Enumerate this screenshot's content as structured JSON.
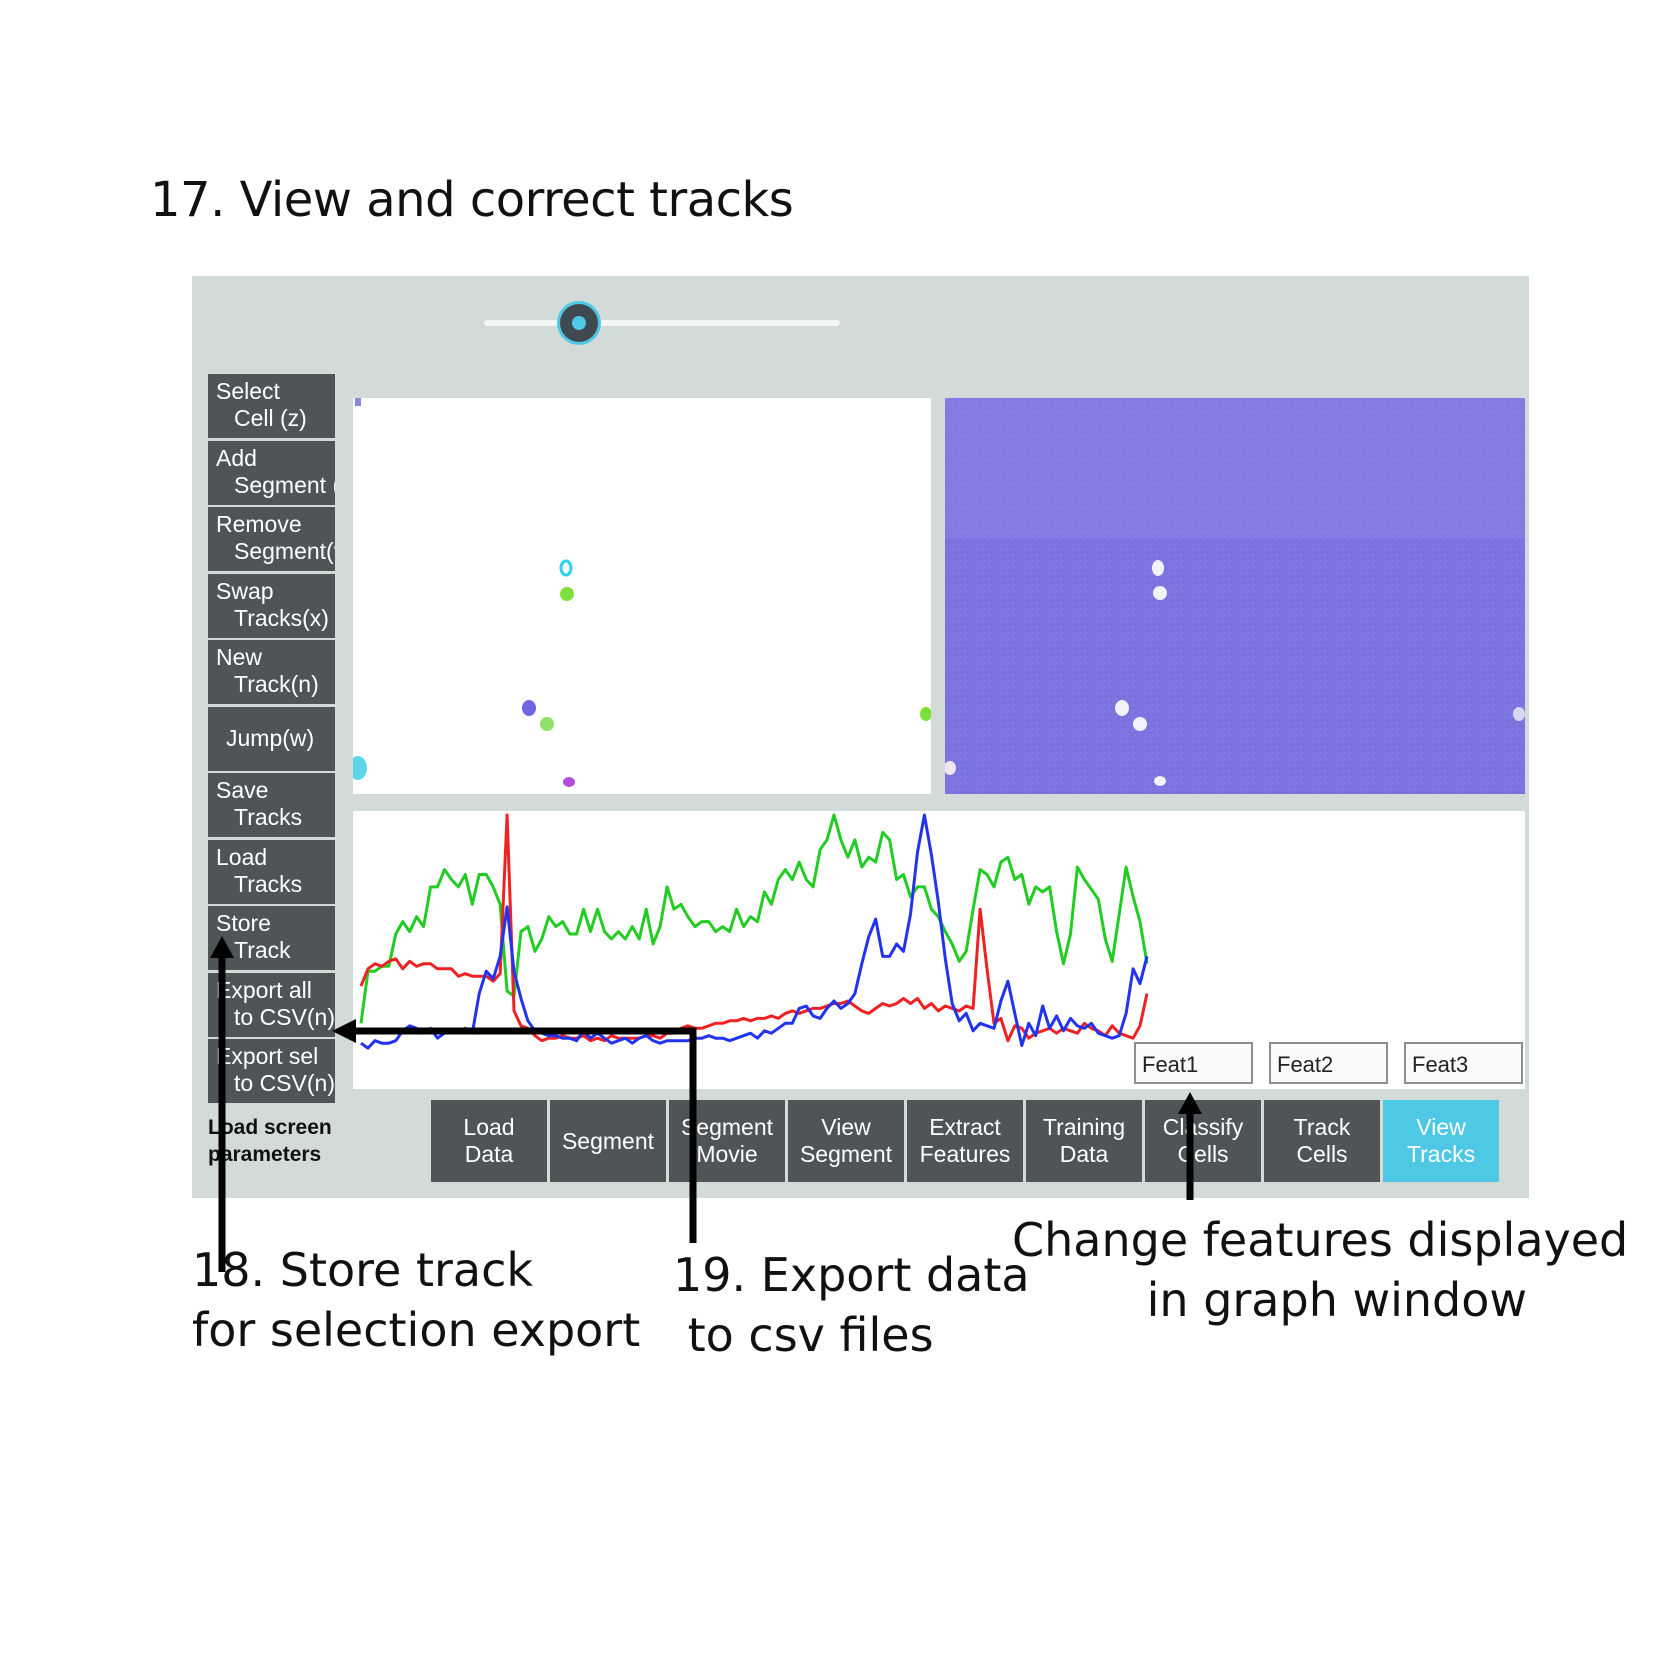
{
  "figure": {
    "title": "17. View and correct tracks",
    "annotation_store": "18. Store track\nfor selection export",
    "annotation_export": "19. Export data\n to csv files",
    "annotation_features": "Change features displayed\n in graph window"
  },
  "app": {
    "slider": {
      "value_fraction": 0.27
    },
    "side_buttons": [
      {
        "line1": "Select",
        "line2": "Cell (z)"
      },
      {
        "line1": "Add",
        "line2": "Segment (c)"
      },
      {
        "line1": "Remove",
        "line2": "Segment(v)"
      },
      {
        "line1": "Swap",
        "line2": "Tracks(x)"
      },
      {
        "line1": "New",
        "line2": "Track(n)"
      },
      {
        "line1": "Jump(w)",
        "line2": ""
      },
      {
        "line1": "Save",
        "line2": "Tracks"
      },
      {
        "line1": "Load",
        "line2": "Tracks"
      },
      {
        "line1": "Store",
        "line2": "Track"
      },
      {
        "line1": "Export all",
        "line2": "to CSV(n)"
      },
      {
        "line1": "Export sel",
        "line2": "to CSV(n)"
      }
    ],
    "load_params_label": "Load screen\nparameters",
    "feature_inputs": [
      "Feat1",
      "Feat2",
      "Feat3"
    ],
    "tabs": [
      {
        "line1": "Load",
        "line2": "Data"
      },
      {
        "line1": "Segment",
        "line2": ""
      },
      {
        "line1": "Segment",
        "line2": "Movie"
      },
      {
        "line1": "View",
        "line2": "Segment"
      },
      {
        "line1": "Extract",
        "line2": "Features"
      },
      {
        "line1": "Training",
        "line2": "Data"
      },
      {
        "line1": "Classify",
        "line2": "Cells"
      },
      {
        "line1": "Track",
        "line2": "Cells"
      },
      {
        "line1": "View",
        "line2": "Tracks",
        "active": true
      }
    ],
    "colors": {
      "accent": "#4fc8e6",
      "button": "#4f5557",
      "background": "#d3dbd9",
      "image_bg": "#7b73e0"
    }
  },
  "chart_data": {
    "type": "line",
    "series": [
      {
        "color": "#22cc22",
        "values": [
          0.16,
          0.37,
          0.37,
          0.39,
          0.39,
          0.52,
          0.57,
          0.53,
          0.59,
          0.55,
          0.71,
          0.71,
          0.78,
          0.74,
          0.71,
          0.76,
          0.64,
          0.76,
          0.76,
          0.71,
          0.64,
          0.29,
          0.27,
          0.53,
          0.55,
          0.45,
          0.5,
          0.59,
          0.55,
          0.57,
          0.52,
          0.52,
          0.62,
          0.53,
          0.62,
          0.53,
          0.5,
          0.53,
          0.5,
          0.55,
          0.5,
          0.62,
          0.48,
          0.55,
          0.71,
          0.62,
          0.64,
          0.59,
          0.55,
          0.57,
          0.57,
          0.53,
          0.55,
          0.53,
          0.62,
          0.55,
          0.59,
          0.57,
          0.69,
          0.64,
          0.74,
          0.78,
          0.74,
          0.81,
          0.74,
          0.71,
          0.86,
          0.9,
          1.0,
          0.9,
          0.83,
          0.9,
          0.79,
          0.83,
          0.81,
          0.93,
          0.9,
          0.74,
          0.76,
          0.67,
          0.71,
          0.71,
          0.62,
          0.59,
          0.53,
          0.48,
          0.41,
          0.45,
          0.62,
          0.78,
          0.76,
          0.71,
          0.81,
          0.83,
          0.74,
          0.76,
          0.64,
          0.71,
          0.69,
          0.71,
          0.53,
          0.4,
          0.52,
          0.79,
          0.74,
          0.7,
          0.66,
          0.5,
          0.41,
          0.6,
          0.79,
          0.67,
          0.57,
          0.4
        ]
      },
      {
        "color": "#ee2222",
        "values": [
          0.31,
          0.38,
          0.4,
          0.39,
          0.41,
          0.42,
          0.38,
          0.41,
          0.39,
          0.4,
          0.4,
          0.38,
          0.38,
          0.38,
          0.35,
          0.36,
          0.35,
          0.35,
          0.35,
          0.33,
          0.36,
          1.0,
          0.21,
          0.15,
          0.14,
          0.11,
          0.09,
          0.1,
          0.1,
          0.11,
          0.1,
          0.1,
          0.11,
          0.09,
          0.1,
          0.09,
          0.11,
          0.1,
          0.1,
          0.1,
          0.1,
          0.11,
          0.11,
          0.1,
          0.12,
          0.12,
          0.14,
          0.15,
          0.14,
          0.14,
          0.15,
          0.16,
          0.16,
          0.17,
          0.17,
          0.18,
          0.17,
          0.18,
          0.18,
          0.19,
          0.18,
          0.2,
          0.21,
          0.2,
          0.21,
          0.22,
          0.22,
          0.23,
          0.24,
          0.24,
          0.25,
          0.23,
          0.21,
          0.2,
          0.22,
          0.24,
          0.23,
          0.24,
          0.26,
          0.24,
          0.26,
          0.22,
          0.24,
          0.21,
          0.23,
          0.22,
          0.21,
          0.23,
          0.22,
          0.62,
          0.38,
          0.16,
          0.18,
          0.09,
          0.15,
          0.14,
          0.1,
          0.12,
          0.13,
          0.14,
          0.12,
          0.14,
          0.13,
          0.12,
          0.16,
          0.14,
          0.13,
          0.11,
          0.15,
          0.12,
          0.11,
          0.1,
          0.15,
          0.28
        ]
      },
      {
        "color": "#2233ee",
        "values": [
          0.08,
          0.06,
          0.09,
          0.08,
          0.08,
          0.09,
          0.13,
          0.15,
          0.14,
          0.12,
          0.14,
          0.1,
          0.12,
          0.13,
          0.13,
          0.14,
          0.12,
          0.28,
          0.37,
          0.34,
          0.43,
          0.63,
          0.37,
          0.26,
          0.17,
          0.13,
          0.12,
          0.11,
          0.11,
          0.1,
          0.1,
          0.09,
          0.13,
          0.1,
          0.12,
          0.1,
          0.08,
          0.09,
          0.1,
          0.08,
          0.1,
          0.11,
          0.09,
          0.08,
          0.09,
          0.09,
          0.09,
          0.09,
          0.1,
          0.1,
          0.11,
          0.1,
          0.1,
          0.09,
          0.1,
          0.11,
          0.12,
          0.1,
          0.13,
          0.12,
          0.14,
          0.16,
          0.16,
          0.22,
          0.23,
          0.19,
          0.18,
          0.22,
          0.25,
          0.22,
          0.24,
          0.28,
          0.4,
          0.51,
          0.58,
          0.43,
          0.43,
          0.48,
          0.45,
          0.6,
          0.85,
          1.0,
          0.84,
          0.65,
          0.42,
          0.24,
          0.17,
          0.2,
          0.13,
          0.16,
          0.15,
          0.14,
          0.25,
          0.33,
          0.2,
          0.07,
          0.16,
          0.11,
          0.23,
          0.14,
          0.19,
          0.13,
          0.18,
          0.15,
          0.14,
          0.16,
          0.12,
          0.11,
          0.1,
          0.11,
          0.2,
          0.38,
          0.32,
          0.43
        ]
      }
    ]
  }
}
